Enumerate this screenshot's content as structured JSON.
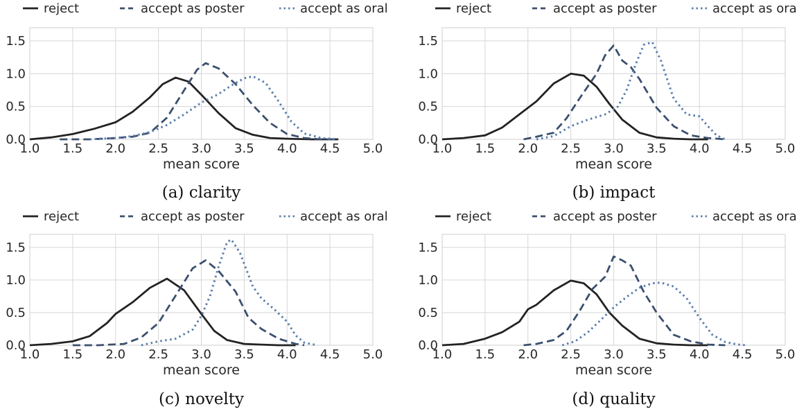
{
  "colors": {
    "reject": "#222222",
    "poster": "#3b4f6e",
    "oral": "#5b7eab"
  },
  "legend": [
    "reject",
    "accept as poster",
    "accept as oral"
  ],
  "chart_data": [
    {
      "type": "line",
      "caption": "(a) clarity",
      "xlabel": "mean score",
      "ylabel": "",
      "xlim": [
        1.0,
        5.0
      ],
      "ylim": [
        0.0,
        1.7
      ],
      "xticks": [
        "1.0",
        "1.5",
        "2.0",
        "2.5",
        "3.0",
        "3.5",
        "4.0",
        "4.5",
        "5.0"
      ],
      "yticks": [
        "0.0",
        "0.5",
        "1.0",
        "1.5"
      ],
      "grid": true,
      "legend_position": "top",
      "series": [
        {
          "name": "reject",
          "style": "solid",
          "x": [
            1.0,
            1.25,
            1.5,
            1.75,
            2.0,
            2.2,
            2.4,
            2.55,
            2.7,
            2.85,
            3.0,
            3.2,
            3.4,
            3.6,
            3.8,
            4.0,
            4.3,
            4.6
          ],
          "y": [
            0.0,
            0.03,
            0.08,
            0.16,
            0.26,
            0.42,
            0.64,
            0.84,
            0.94,
            0.88,
            0.68,
            0.4,
            0.17,
            0.07,
            0.02,
            0.01,
            0.0,
            0.0
          ]
        },
        {
          "name": "accept as poster",
          "style": "dashed",
          "x": [
            1.35,
            1.7,
            2.0,
            2.2,
            2.4,
            2.6,
            2.8,
            2.95,
            3.05,
            3.2,
            3.4,
            3.6,
            3.8,
            4.0,
            4.2,
            4.4,
            4.6
          ],
          "y": [
            0.0,
            0.0,
            0.02,
            0.04,
            0.1,
            0.33,
            0.75,
            1.06,
            1.16,
            1.08,
            0.84,
            0.52,
            0.25,
            0.08,
            0.02,
            0.0,
            0.0
          ]
        },
        {
          "name": "accept as oral",
          "style": "dotted",
          "x": [
            1.7,
            2.0,
            2.2,
            2.4,
            2.6,
            2.8,
            3.0,
            3.2,
            3.35,
            3.5,
            3.6,
            3.75,
            3.9,
            4.05,
            4.2,
            4.4,
            4.6
          ],
          "y": [
            0.0,
            0.02,
            0.05,
            0.11,
            0.22,
            0.38,
            0.56,
            0.69,
            0.82,
            0.93,
            0.96,
            0.86,
            0.58,
            0.27,
            0.09,
            0.02,
            0.0
          ]
        }
      ]
    },
    {
      "type": "line",
      "caption": "(b) impact",
      "xlabel": "mean score",
      "ylabel": "",
      "xlim": [
        1.0,
        5.0
      ],
      "ylim": [
        0.0,
        1.7
      ],
      "xticks": [
        "1.0",
        "1.5",
        "2.0",
        "2.5",
        "3.0",
        "3.5",
        "4.0",
        "4.5",
        "5.0"
      ],
      "yticks": [
        "0.0",
        "0.5",
        "1.0",
        "1.5"
      ],
      "grid": true,
      "legend_position": "top",
      "series": [
        {
          "name": "reject",
          "style": "solid",
          "x": [
            1.0,
            1.25,
            1.5,
            1.7,
            1.9,
            2.0,
            2.1,
            2.3,
            2.5,
            2.65,
            2.8,
            2.95,
            3.1,
            3.3,
            3.5,
            3.7,
            3.9,
            4.1
          ],
          "y": [
            0.0,
            0.02,
            0.06,
            0.18,
            0.38,
            0.48,
            0.58,
            0.85,
            1.0,
            0.97,
            0.8,
            0.54,
            0.3,
            0.1,
            0.03,
            0.01,
            0.0,
            0.0
          ]
        },
        {
          "name": "accept as poster",
          "style": "dashed",
          "x": [
            1.95,
            2.1,
            2.3,
            2.45,
            2.6,
            2.8,
            2.9,
            3.0,
            3.1,
            3.2,
            3.3,
            3.5,
            3.7,
            3.9,
            4.1,
            4.3
          ],
          "y": [
            0.0,
            0.04,
            0.1,
            0.32,
            0.62,
            1.0,
            1.28,
            1.43,
            1.2,
            1.1,
            0.92,
            0.48,
            0.2,
            0.06,
            0.02,
            0.0
          ]
        },
        {
          "name": "accept as oral",
          "style": "dotted",
          "x": [
            2.1,
            2.3,
            2.5,
            2.7,
            2.9,
            3.05,
            3.15,
            3.25,
            3.35,
            3.45,
            3.55,
            3.7,
            3.85,
            4.0,
            4.1,
            4.2,
            4.3
          ],
          "y": [
            0.0,
            0.05,
            0.2,
            0.3,
            0.38,
            0.5,
            0.75,
            1.12,
            1.44,
            1.48,
            1.2,
            0.62,
            0.38,
            0.35,
            0.2,
            0.06,
            0.0
          ]
        }
      ]
    },
    {
      "type": "line",
      "caption": "(c) novelty",
      "xlabel": "mean score",
      "ylabel": "",
      "xlim": [
        1.0,
        5.0
      ],
      "ylim": [
        0.0,
        1.7
      ],
      "xticks": [
        "1.0",
        "1.5",
        "2.0",
        "2.5",
        "3.0",
        "3.5",
        "4.0",
        "4.5",
        "5.0"
      ],
      "yticks": [
        "0.0",
        "0.5",
        "1.0",
        "1.5"
      ],
      "grid": true,
      "legend_position": "top",
      "series": [
        {
          "name": "reject",
          "style": "solid",
          "x": [
            1.0,
            1.25,
            1.5,
            1.7,
            1.9,
            2.0,
            2.2,
            2.4,
            2.6,
            2.8,
            3.0,
            3.15,
            3.3,
            3.5,
            3.7,
            3.9,
            4.1
          ],
          "y": [
            0.0,
            0.02,
            0.06,
            0.14,
            0.34,
            0.48,
            0.66,
            0.88,
            1.02,
            0.84,
            0.48,
            0.22,
            0.08,
            0.02,
            0.01,
            0.0,
            0.0
          ]
        },
        {
          "name": "accept as poster",
          "style": "dashed",
          "x": [
            1.5,
            1.8,
            2.1,
            2.3,
            2.5,
            2.7,
            2.9,
            3.05,
            3.2,
            3.4,
            3.55,
            3.7,
            3.9,
            4.1,
            4.2
          ],
          "y": [
            0.0,
            0.0,
            0.02,
            0.12,
            0.34,
            0.76,
            1.18,
            1.3,
            1.14,
            0.82,
            0.42,
            0.25,
            0.1,
            0.02,
            0.0
          ]
        },
        {
          "name": "accept as oral",
          "style": "dotted",
          "x": [
            2.3,
            2.5,
            2.7,
            2.9,
            3.0,
            3.1,
            3.2,
            3.3,
            3.35,
            3.45,
            3.6,
            3.7,
            3.85,
            4.0,
            4.1,
            4.2,
            4.35
          ],
          "y": [
            0.0,
            0.06,
            0.1,
            0.24,
            0.45,
            0.75,
            1.2,
            1.58,
            1.62,
            1.42,
            0.9,
            0.72,
            0.55,
            0.36,
            0.15,
            0.04,
            0.0
          ]
        }
      ]
    },
    {
      "type": "line",
      "caption": "(d) quality",
      "xlabel": "mean score",
      "ylabel": "",
      "xlim": [
        1.0,
        5.0
      ],
      "ylim": [
        0.0,
        1.7
      ],
      "xticks": [
        "1.0",
        "1.5",
        "2.0",
        "2.5",
        "3.0",
        "3.5",
        "4.0",
        "4.5",
        "5.0"
      ],
      "yticks": [
        "0.0",
        "0.5",
        "1.0",
        "1.5"
      ],
      "grid": true,
      "legend_position": "top",
      "series": [
        {
          "name": "reject",
          "style": "solid",
          "x": [
            1.0,
            1.25,
            1.5,
            1.7,
            1.9,
            2.0,
            2.1,
            2.3,
            2.5,
            2.65,
            2.8,
            2.95,
            3.1,
            3.3,
            3.5,
            3.7,
            3.9,
            4.1
          ],
          "y": [
            0.0,
            0.02,
            0.1,
            0.2,
            0.36,
            0.55,
            0.62,
            0.84,
            0.99,
            0.95,
            0.78,
            0.5,
            0.3,
            0.1,
            0.03,
            0.01,
            0.0,
            0.0
          ]
        },
        {
          "name": "accept as poster",
          "style": "dashed",
          "x": [
            1.95,
            2.1,
            2.3,
            2.45,
            2.6,
            2.75,
            2.9,
            3.0,
            3.1,
            3.2,
            3.35,
            3.5,
            3.7,
            3.9,
            4.1,
            4.3
          ],
          "y": [
            0.0,
            0.02,
            0.08,
            0.22,
            0.52,
            0.86,
            1.05,
            1.36,
            1.3,
            1.22,
            0.82,
            0.5,
            0.16,
            0.06,
            0.01,
            0.0
          ]
        },
        {
          "name": "accept as oral",
          "style": "dotted",
          "x": [
            2.4,
            2.55,
            2.7,
            2.9,
            3.0,
            3.15,
            3.3,
            3.45,
            3.55,
            3.7,
            3.85,
            4.0,
            4.15,
            4.3,
            4.45,
            4.55
          ],
          "y": [
            0.0,
            0.06,
            0.2,
            0.45,
            0.58,
            0.74,
            0.88,
            0.95,
            0.96,
            0.9,
            0.72,
            0.42,
            0.16,
            0.05,
            0.01,
            0.0
          ]
        }
      ]
    }
  ]
}
